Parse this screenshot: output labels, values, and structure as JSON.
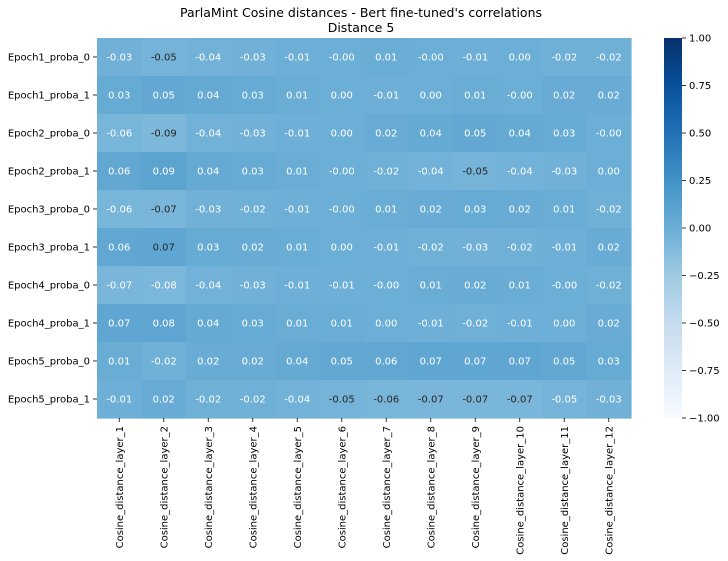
{
  "chart_data": {
    "type": "heatmap",
    "title": "ParlaMint Cosine distances - Bert fine-tuned's correlations",
    "subtitle": "Distance 5",
    "rows": [
      "Epoch1_proba_0",
      "Epoch1_proba_1",
      "Epoch2_proba_0",
      "Epoch2_proba_1",
      "Epoch3_proba_0",
      "Epoch3_proba_1",
      "Epoch4_proba_0",
      "Epoch4_proba_1",
      "Epoch5_proba_0",
      "Epoch5_proba_1"
    ],
    "columns": [
      "Cosine_distance_layer_1",
      "Cosine_distance_layer_2",
      "Cosine_distance_layer_3",
      "Cosine_distance_layer_4",
      "Cosine_distance_layer_5",
      "Cosine_distance_layer_6",
      "Cosine_distance_layer_7",
      "Cosine_distance_layer_8",
      "Cosine_distance_layer_9",
      "Cosine_distance_layer_10",
      "Cosine_distance_layer_11",
      "Cosine_distance_layer_12"
    ],
    "values": [
      [
        -0.03,
        -0.05,
        -0.04,
        -0.03,
        -0.01,
        -0.0,
        0.01,
        -0.0,
        -0.01,
        0.0,
        -0.02,
        -0.02
      ],
      [
        0.03,
        0.05,
        0.04,
        0.03,
        0.01,
        0.0,
        -0.01,
        0.0,
        0.01,
        -0.0,
        0.02,
        0.02
      ],
      [
        -0.06,
        -0.09,
        -0.04,
        -0.03,
        -0.01,
        0.0,
        0.02,
        0.04,
        0.05,
        0.04,
        0.03,
        -0.0
      ],
      [
        0.06,
        0.09,
        0.04,
        0.03,
        0.01,
        -0.0,
        -0.02,
        -0.04,
        -0.05,
        -0.04,
        -0.03,
        0.0
      ],
      [
        -0.06,
        -0.07,
        -0.03,
        -0.02,
        -0.01,
        -0.0,
        0.01,
        0.02,
        0.03,
        0.02,
        0.01,
        -0.02
      ],
      [
        0.06,
        0.07,
        0.03,
        0.02,
        0.01,
        0.0,
        -0.01,
        -0.02,
        -0.03,
        -0.02,
        -0.01,
        0.02
      ],
      [
        -0.07,
        -0.08,
        -0.04,
        -0.03,
        -0.01,
        -0.01,
        -0.0,
        0.01,
        0.02,
        0.01,
        -0.0,
        -0.02
      ],
      [
        0.07,
        0.08,
        0.04,
        0.03,
        0.01,
        0.01,
        0.0,
        -0.01,
        -0.02,
        -0.01,
        0.0,
        0.02
      ],
      [
        0.01,
        -0.02,
        0.02,
        0.02,
        0.04,
        0.05,
        0.06,
        0.07,
        0.07,
        0.07,
        0.05,
        0.03
      ],
      [
        -0.01,
        0.02,
        -0.02,
        -0.02,
        -0.04,
        -0.05,
        -0.06,
        -0.07,
        -0.07,
        -0.07,
        -0.05,
        -0.03
      ]
    ],
    "labels": [
      [
        "-0.03",
        "-0.05",
        "-0.04",
        "-0.03",
        "-0.01",
        "-0.00",
        "0.01",
        "-0.00",
        "-0.01",
        "0.00",
        "-0.02",
        "-0.02"
      ],
      [
        "0.03",
        "0.05",
        "0.04",
        "0.03",
        "0.01",
        "0.00",
        "-0.01",
        "0.00",
        "0.01",
        "-0.00",
        "0.02",
        "0.02"
      ],
      [
        "-0.06",
        "-0.09",
        "-0.04",
        "-0.03",
        "-0.01",
        "0.00",
        "0.02",
        "0.04",
        "0.05",
        "0.04",
        "0.03",
        "-0.00"
      ],
      [
        "0.06",
        "0.09",
        "0.04",
        "0.03",
        "0.01",
        "-0.00",
        "-0.02",
        "-0.04",
        "-0.05",
        "-0.04",
        "-0.03",
        "0.00"
      ],
      [
        "-0.06",
        "-0.07",
        "-0.03",
        "-0.02",
        "-0.01",
        "-0.00",
        "0.01",
        "0.02",
        "0.03",
        "0.02",
        "0.01",
        "-0.02"
      ],
      [
        "0.06",
        "0.07",
        "0.03",
        "0.02",
        "0.01",
        "0.00",
        "-0.01",
        "-0.02",
        "-0.03",
        "-0.02",
        "-0.01",
        "0.02"
      ],
      [
        "-0.07",
        "-0.08",
        "-0.04",
        "-0.03",
        "-0.01",
        "-0.01",
        "-0.00",
        "0.01",
        "0.02",
        "0.01",
        "-0.00",
        "-0.02"
      ],
      [
        "0.07",
        "0.08",
        "0.04",
        "0.03",
        "0.01",
        "0.01",
        "0.00",
        "-0.01",
        "-0.02",
        "-0.01",
        "0.00",
        "0.02"
      ],
      [
        "0.01",
        "-0.02",
        "0.02",
        "0.02",
        "0.04",
        "0.05",
        "0.06",
        "0.07",
        "0.07",
        "0.07",
        "0.05",
        "0.03"
      ],
      [
        "-0.01",
        "0.02",
        "-0.02",
        "-0.02",
        "-0.04",
        "-0.05",
        "-0.06",
        "-0.07",
        "-0.07",
        "-0.07",
        "-0.05",
        "-0.03"
      ]
    ],
    "dark_text_cells": [
      [
        0,
        1
      ],
      [
        2,
        1
      ],
      [
        3,
        8
      ],
      [
        4,
        1
      ],
      [
        5,
        1
      ],
      [
        9,
        5
      ],
      [
        9,
        6
      ],
      [
        9,
        7
      ],
      [
        9,
        8
      ],
      [
        9,
        9
      ]
    ],
    "colorscale": "Blues",
    "vmin": -1.0,
    "vmax": 1.0,
    "colorbar_ticks": [
      1.0,
      0.75,
      0.5,
      0.25,
      0.0,
      -0.25,
      -0.5,
      -0.75,
      -1.0
    ],
    "colorbar_tick_labels": [
      "1.00",
      "0.75",
      "0.50",
      "0.25",
      "0.00",
      "−0.25",
      "−0.50",
      "−0.75",
      "−1.00"
    ],
    "cell_text_light": "#ffffff",
    "cell_text_dark": "#262626"
  }
}
